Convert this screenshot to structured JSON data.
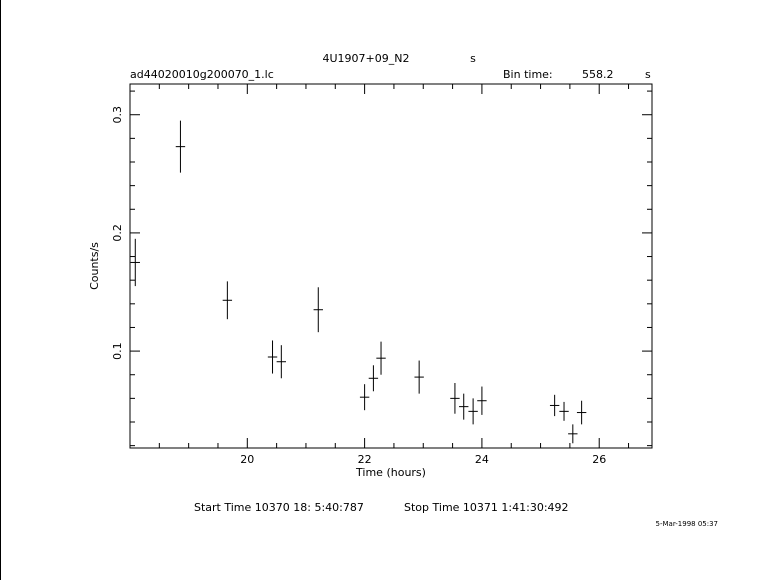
{
  "chart_data": {
    "type": "errorbar",
    "title": "4U1907+09_N2",
    "title_unit": "s",
    "file_name": "ad44020010g200070_1.lc",
    "bin_time_label": "Bin time:",
    "bin_time": "558.2",
    "bin_time_unit": "s",
    "x_label": "Time (hours)",
    "y_label": "Counts/s",
    "start_time": "Start Time 10370 18: 5:40:787",
    "stop_time": "Stop Time 10371  1:41:30:492",
    "date_stamp": "5-Mar-1998 05:37",
    "xlim": [
      18.0,
      26.9
    ],
    "ylim": [
      0.018,
      0.326
    ],
    "xticks": [
      20,
      22,
      24,
      26
    ],
    "yticks": [
      0.1,
      0.2,
      0.3
    ],
    "xminorticks": [
      18.5,
      19,
      19.5,
      20.5,
      21,
      21.5,
      22.5,
      23,
      23.5,
      24.5,
      25,
      25.5,
      26.5
    ],
    "yminorticks": [
      0.02,
      0.04,
      0.06,
      0.08,
      0.12,
      0.14,
      0.16,
      0.18,
      0.22,
      0.24,
      0.26,
      0.28,
      0.32
    ],
    "color": "#000000",
    "series": [
      {
        "x": [
          18.09,
          18.86,
          19.66,
          20.43,
          20.58,
          21.21,
          22.0,
          22.15,
          22.28,
          22.93,
          23.54,
          23.69,
          23.85,
          24.0,
          25.24,
          25.4,
          25.55,
          25.7
        ],
        "values": [
          0.175,
          0.273,
          0.143,
          0.095,
          0.091,
          0.135,
          0.061,
          0.077,
          0.094,
          0.078,
          0.06,
          0.053,
          0.049,
          0.058,
          0.054,
          0.049,
          0.03,
          0.048
        ],
        "errors": [
          0.02,
          0.022,
          0.016,
          0.014,
          0.014,
          0.019,
          0.011,
          0.011,
          0.014,
          0.014,
          0.013,
          0.011,
          0.011,
          0.012,
          0.009,
          0.008,
          0.008,
          0.01
        ],
        "xerr": 0.08
      }
    ]
  }
}
